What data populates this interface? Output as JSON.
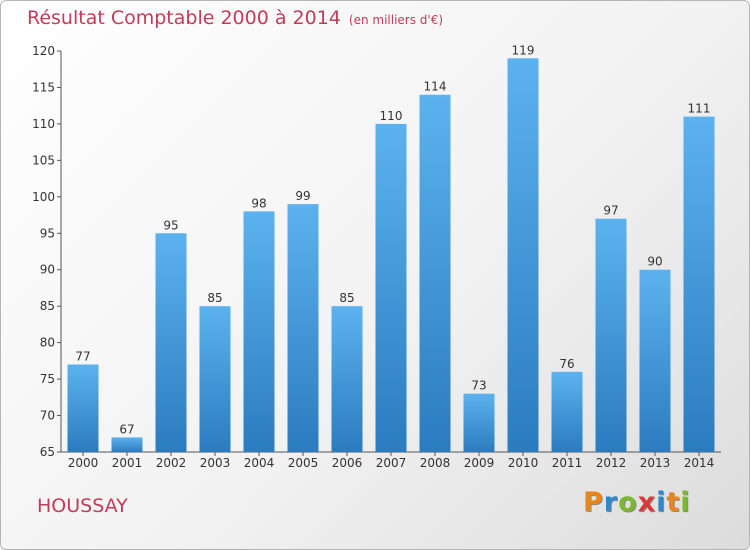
{
  "header": {
    "title": "Résultat Comptable 2000 à 2014",
    "unit": "(en milliers d'€)"
  },
  "footer": {
    "city": "HOUSSAY",
    "logo": [
      "P",
      "r",
      "o",
      "x",
      "i",
      "t",
      "i"
    ]
  },
  "colors": {
    "bar": "#4da6e6",
    "bar_dark": "#2a7fc4",
    "title": "#c03c5a",
    "logo": [
      "#e8861b",
      "#2f86c9",
      "#7ab82f",
      "#d83a3a",
      "#2f86c9",
      "#e8861b",
      "#7ab82f"
    ]
  },
  "chart_data": {
    "type": "bar",
    "title": "Résultat Comptable 2000 à 2014",
    "ylabel": "(en milliers d'€)",
    "categories": [
      "2000",
      "2001",
      "2002",
      "2003",
      "2004",
      "2005",
      "2006",
      "2007",
      "2008",
      "2009",
      "2010",
      "2011",
      "2012",
      "2013",
      "2014"
    ],
    "values": [
      77,
      67,
      95,
      85,
      98,
      99,
      85,
      110,
      114,
      73,
      119,
      76,
      97,
      90,
      111
    ],
    "ylim": [
      65,
      120
    ],
    "yticks": [
      65,
      70,
      75,
      80,
      85,
      90,
      95,
      100,
      105,
      110,
      115,
      120
    ],
    "grid": false
  }
}
